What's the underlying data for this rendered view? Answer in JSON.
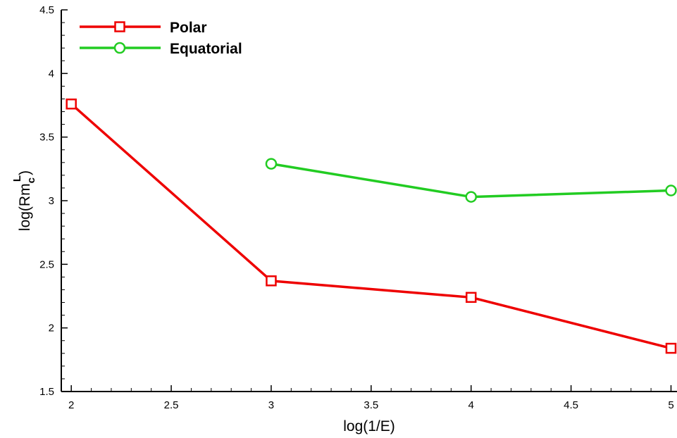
{
  "chart_data": {
    "type": "line",
    "xlabel": "log(1/E)",
    "ylabel": {
      "base": "log(Rm",
      "sub": "c",
      "sup": "L",
      "close": ")"
    },
    "xlim": [
      1.95,
      5.03
    ],
    "ylim": [
      1.5,
      4.5
    ],
    "x_ticks": [
      2,
      2.5,
      3,
      3.5,
      4,
      4.5,
      5
    ],
    "x_tick_labels": [
      "2",
      "2.5",
      "3",
      "3.5",
      "4",
      "4.5",
      "5"
    ],
    "y_ticks": [
      1.5,
      2,
      2.5,
      3,
      3.5,
      4,
      4.5
    ],
    "y_tick_labels": [
      "1.5",
      "2",
      "2.5",
      "3",
      "3.5",
      "4",
      "4.5"
    ],
    "grid": false,
    "legend_position": "top-left",
    "series": [
      {
        "name": "Polar",
        "color": "#ee0000",
        "marker": "square",
        "x": [
          2,
          3,
          4,
          5
        ],
        "y": [
          3.76,
          2.37,
          2.24,
          1.84
        ]
      },
      {
        "name": "Equatorial",
        "color": "#22cc22",
        "marker": "circle",
        "x": [
          3,
          4,
          5
        ],
        "y": [
          3.29,
          3.03,
          3.08
        ]
      }
    ]
  }
}
